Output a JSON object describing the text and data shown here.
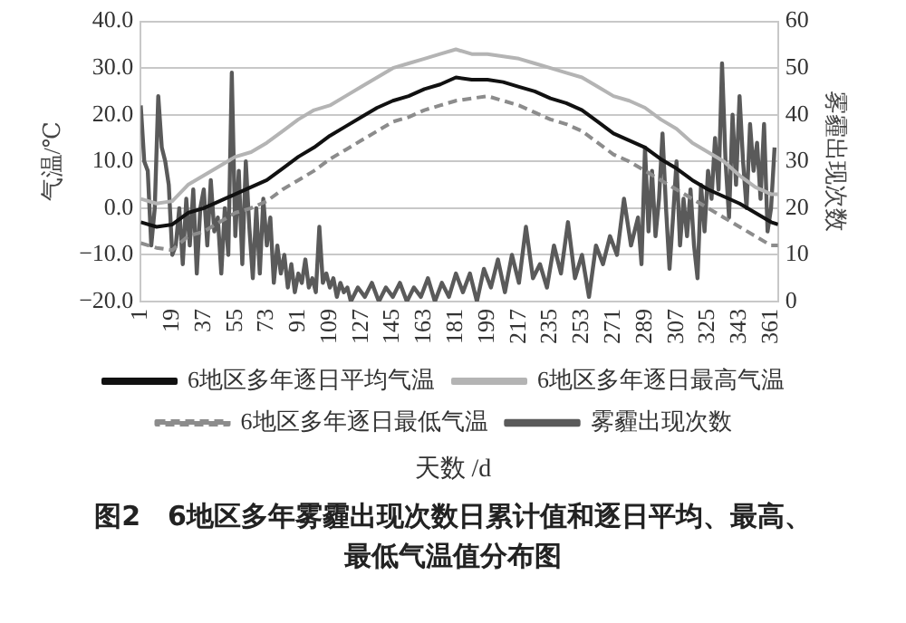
{
  "chart_data": {
    "type": "line",
    "title": "图2　6地区多年雾霾出现次数日累计值和逐日平均、最高、最低气温值分布图",
    "xlabel": "天数 /d",
    "ylabel": "气温/℃",
    "y2label": "雾霾出现次数",
    "xlim": [
      1,
      365
    ],
    "xticks": [
      1,
      19,
      37,
      55,
      73,
      91,
      109,
      127,
      145,
      163,
      181,
      199,
      217,
      235,
      253,
      271,
      289,
      307,
      325,
      343,
      361
    ],
    "ylim": [
      -20,
      40
    ],
    "yticks": [
      {
        "value": 40,
        "label": "40.0"
      },
      {
        "value": 30,
        "label": "30.0"
      },
      {
        "value": 20,
        "label": "20.0"
      },
      {
        "value": 10,
        "label": "10.0"
      },
      {
        "value": 0,
        "label": "0.0"
      },
      {
        "value": -10,
        "label": "−10.0"
      },
      {
        "value": -20,
        "label": "−20.0"
      }
    ],
    "y2lim": [
      0,
      60
    ],
    "y2ticks": [
      0,
      10,
      20,
      30,
      40,
      50,
      60
    ],
    "grid": "y",
    "legend": "bottom",
    "marker": "none",
    "series": [
      {
        "name": "6地区多年逐日平均气温",
        "color": "#111111",
        "line_style": "solid",
        "x": [
          1,
          10,
          19,
          28,
          37,
          46,
          55,
          64,
          73,
          82,
          91,
          100,
          109,
          118,
          127,
          136,
          145,
          154,
          163,
          172,
          181,
          190,
          199,
          208,
          217,
          226,
          235,
          244,
          253,
          262,
          271,
          280,
          289,
          298,
          307,
          316,
          325,
          334,
          343,
          352,
          361,
          365
        ],
        "values": [
          -3,
          -4,
          -3.5,
          -1,
          0,
          1.5,
          3,
          4.5,
          6,
          8.5,
          11,
          13,
          15.5,
          17.5,
          19.5,
          21.5,
          23,
          24,
          25.5,
          26.5,
          28,
          27.5,
          27.5,
          27,
          26,
          25,
          23.5,
          22.5,
          21,
          18.5,
          16,
          14.5,
          13,
          10.5,
          8.5,
          6,
          4,
          2.5,
          1,
          -1,
          -3,
          -3.5
        ]
      },
      {
        "name": "6地区多年逐日最高气温",
        "color": "#b4b4b4",
        "line_style": "solid",
        "x": [
          1,
          10,
          19,
          28,
          37,
          46,
          55,
          64,
          73,
          82,
          91,
          100,
          109,
          118,
          127,
          136,
          145,
          154,
          163,
          172,
          181,
          190,
          199,
          208,
          217,
          226,
          235,
          244,
          253,
          262,
          271,
          280,
          289,
          298,
          307,
          316,
          325,
          334,
          343,
          352,
          361,
          365
        ],
        "values": [
          2,
          1,
          1.5,
          5,
          7,
          9,
          11,
          12,
          14,
          16.5,
          19,
          21,
          22,
          24,
          26,
          28,
          30,
          31,
          32,
          33,
          34,
          33,
          33,
          32.5,
          32,
          31,
          30,
          29,
          28,
          26,
          24,
          23,
          21.5,
          19,
          17,
          14,
          12,
          10,
          7,
          4.5,
          3,
          3
        ]
      },
      {
        "name": "6地区多年逐日最低气温",
        "color": "#8c8c8c",
        "line_style": "dashed",
        "x": [
          1,
          10,
          19,
          28,
          37,
          46,
          55,
          64,
          73,
          82,
          91,
          100,
          109,
          118,
          127,
          136,
          145,
          154,
          163,
          172,
          181,
          190,
          199,
          208,
          217,
          226,
          235,
          244,
          253,
          262,
          271,
          280,
          289,
          298,
          307,
          316,
          325,
          334,
          343,
          352,
          361,
          365
        ],
        "values": [
          -7.5,
          -8.5,
          -9,
          -6,
          -5,
          -3,
          -1,
          0,
          1.5,
          4,
          6,
          8,
          10.5,
          12.5,
          14.5,
          16.5,
          18.5,
          19.5,
          21,
          22,
          23,
          23.5,
          24,
          23,
          22,
          20.5,
          19,
          18,
          16.5,
          14,
          11.5,
          10,
          8,
          6,
          4,
          2,
          0,
          -2,
          -4,
          -6,
          -8,
          -8
        ]
      },
      {
        "name": "雾霾出现次数",
        "color": "#5a5a5a",
        "line_style": "solid",
        "axis": "y2",
        "x": [
          1,
          3,
          5,
          7,
          9,
          11,
          13,
          15,
          17,
          19,
          21,
          23,
          25,
          27,
          29,
          31,
          33,
          35,
          37,
          39,
          41,
          43,
          45,
          47,
          49,
          51,
          53,
          55,
          57,
          59,
          61,
          63,
          65,
          67,
          69,
          71,
          73,
          75,
          77,
          79,
          81,
          83,
          85,
          87,
          89,
          91,
          93,
          95,
          97,
          99,
          101,
          103,
          105,
          107,
          109,
          111,
          113,
          115,
          117,
          119,
          121,
          125,
          129,
          133,
          137,
          141,
          145,
          149,
          153,
          157,
          161,
          165,
          169,
          173,
          177,
          181,
          185,
          189,
          193,
          197,
          201,
          205,
          209,
          213,
          217,
          221,
          225,
          229,
          233,
          237,
          241,
          245,
          249,
          253,
          257,
          261,
          265,
          269,
          273,
          277,
          281,
          285,
          287,
          289,
          291,
          293,
          295,
          297,
          299,
          301,
          303,
          305,
          307,
          309,
          311,
          313,
          315,
          317,
          319,
          321,
          323,
          325,
          327,
          329,
          331,
          333,
          335,
          337,
          339,
          341,
          343,
          345,
          347,
          349,
          351,
          353,
          355,
          357,
          359,
          361,
          363
        ],
        "values": [
          42,
          30,
          28,
          12,
          20,
          44,
          33,
          30,
          25,
          10,
          12,
          20,
          8,
          22,
          12,
          24,
          6,
          20,
          24,
          12,
          26,
          15,
          18,
          6,
          20,
          10,
          49,
          14,
          28,
          8,
          30,
          16,
          5,
          20,
          6,
          22,
          12,
          18,
          4,
          12,
          6,
          10,
          3,
          8,
          2,
          6,
          4,
          9,
          3,
          5,
          2,
          16,
          4,
          6,
          3,
          5,
          1,
          4,
          2,
          3,
          0,
          3,
          1,
          4,
          0,
          3,
          1,
          4,
          0,
          3,
          1,
          5,
          0,
          4,
          1,
          6,
          2,
          6,
          0,
          7,
          3,
          9,
          2,
          10,
          4,
          16,
          5,
          8,
          3,
          12,
          6,
          17,
          5,
          10,
          1,
          12,
          8,
          14,
          10,
          22,
          12,
          18,
          8,
          33,
          15,
          28,
          14,
          22,
          36,
          20,
          7,
          18,
          30,
          12,
          22,
          14,
          24,
          12,
          5,
          25,
          15,
          28,
          22,
          35,
          24,
          51,
          30,
          18,
          40,
          25,
          44,
          30,
          20,
          38,
          28,
          34,
          22,
          38,
          15,
          20,
          33
        ]
      }
    ]
  }
}
